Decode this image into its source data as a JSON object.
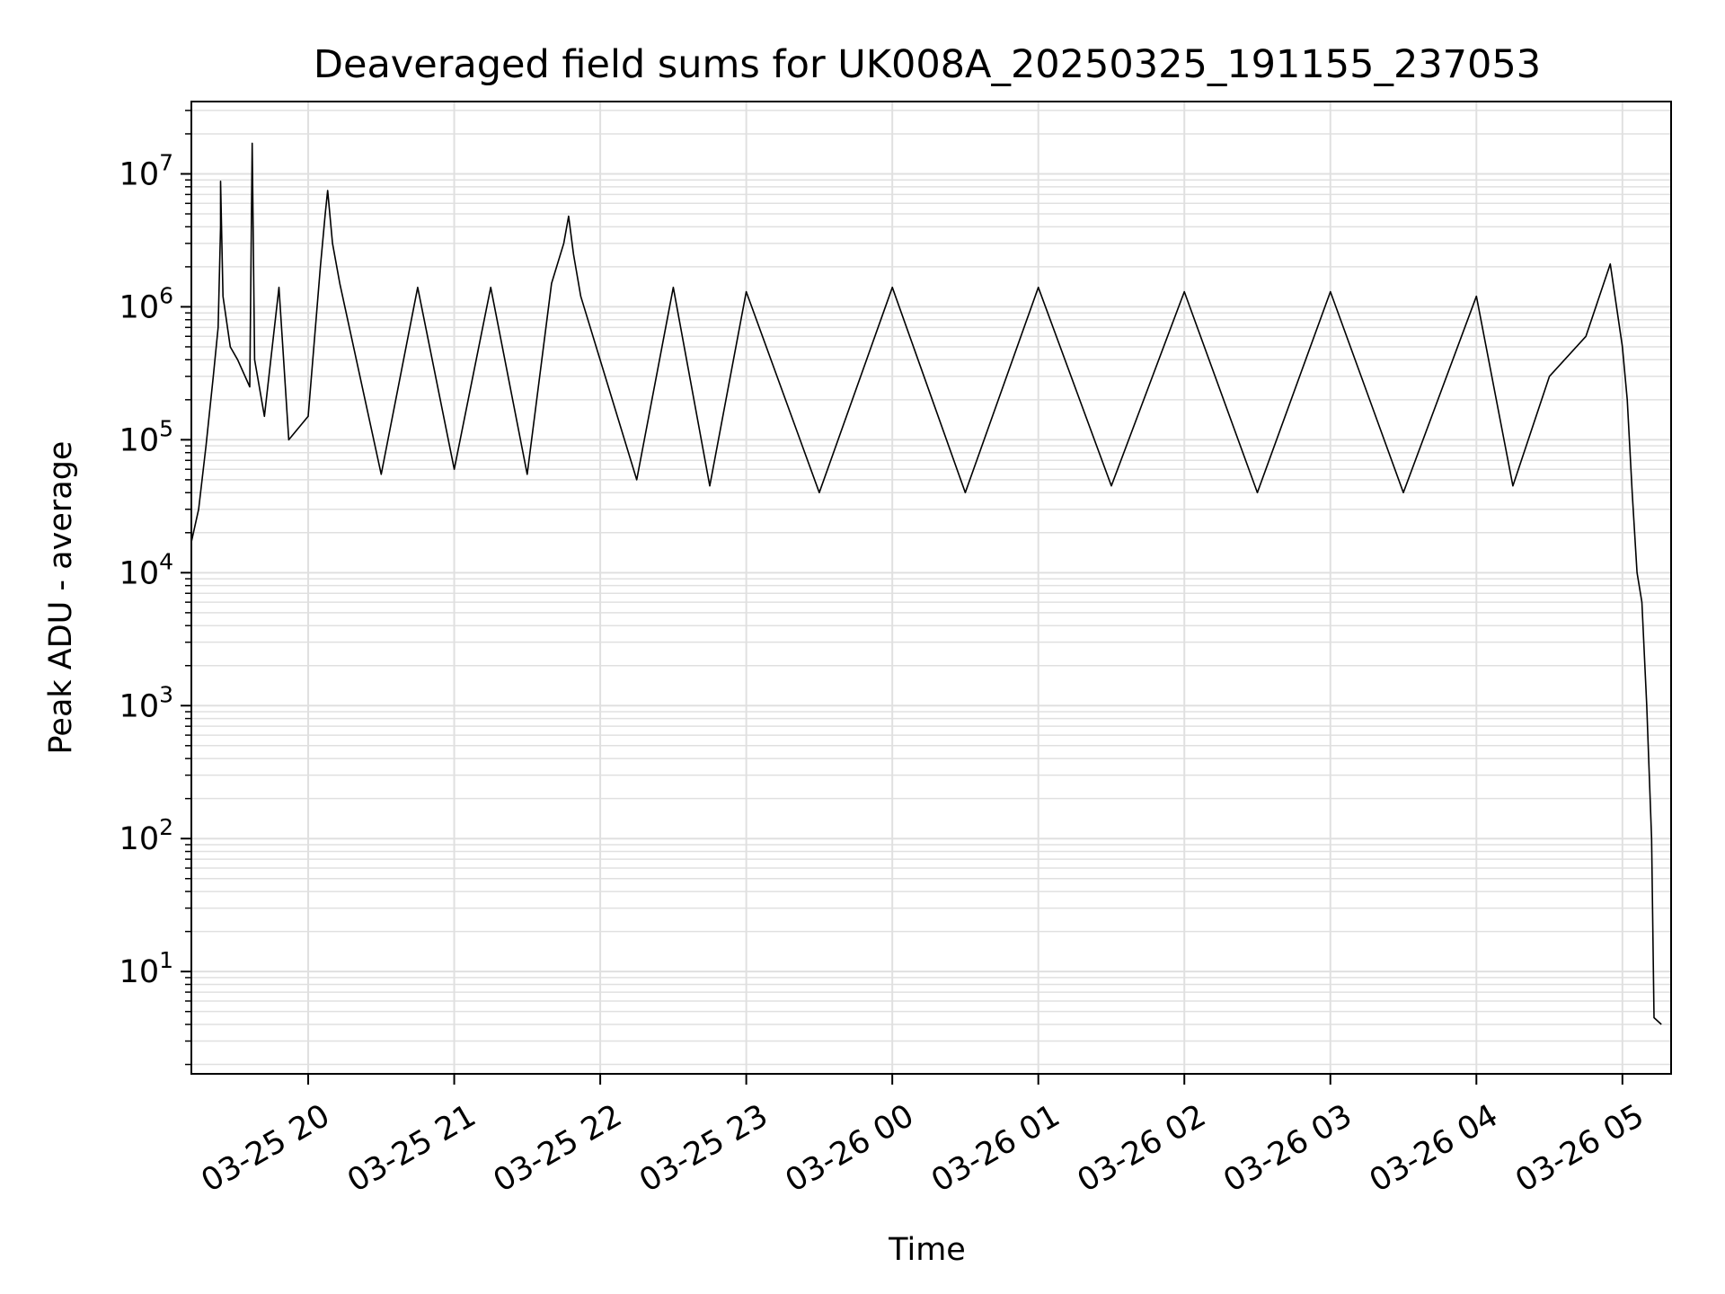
{
  "chart_data": {
    "type": "line",
    "title": "Deaveraged field sums for UK008A_20250325_191155_237053",
    "xlabel": "Time",
    "ylabel": "Peak ADU - average",
    "yscale": "log",
    "ylim": [
      1.7,
      35000000
    ],
    "xlim": [
      "2025-03-25 19:12",
      "2025-03-26 05:20"
    ],
    "grid": true,
    "line_color": "#000000",
    "grid_color": "#e0e0e0",
    "x_ticks": [
      {
        "value": "2025-03-25 20:00",
        "label": "03-25 20"
      },
      {
        "value": "2025-03-25 21:00",
        "label": "03-25 21"
      },
      {
        "value": "2025-03-25 22:00",
        "label": "03-25 22"
      },
      {
        "value": "2025-03-25 23:00",
        "label": "03-25 23"
      },
      {
        "value": "2025-03-26 00:00",
        "label": "03-26 00"
      },
      {
        "value": "2025-03-26 01:00",
        "label": "03-26 01"
      },
      {
        "value": "2025-03-26 02:00",
        "label": "03-26 02"
      },
      {
        "value": "2025-03-26 03:00",
        "label": "03-26 03"
      },
      {
        "value": "2025-03-26 04:00",
        "label": "03-26 04"
      },
      {
        "value": "2025-03-26 05:00",
        "label": "03-26 05"
      }
    ],
    "y_ticks": [
      {
        "value": 10,
        "base": "10",
        "exp": "1"
      },
      {
        "value": 100,
        "base": "10",
        "exp": "2"
      },
      {
        "value": 1000,
        "base": "10",
        "exp": "3"
      },
      {
        "value": 10000,
        "base": "10",
        "exp": "4"
      },
      {
        "value": 100000,
        "base": "10",
        "exp": "5"
      },
      {
        "value": 1000000,
        "base": "10",
        "exp": "6"
      },
      {
        "value": 10000000,
        "base": "10",
        "exp": "7"
      }
    ],
    "series": [
      {
        "points": [
          [
            "2025-03-25 19:12",
            17000
          ],
          [
            "2025-03-25 19:15",
            30000
          ],
          [
            "2025-03-25 19:18",
            90000
          ],
          [
            "2025-03-25 19:21",
            300000
          ],
          [
            "2025-03-25 19:23",
            700000
          ],
          [
            "2025-03-25 19:24",
            4000000
          ],
          [
            "2025-03-25 19:24",
            8800000
          ],
          [
            "2025-03-25 19:25",
            1200000
          ],
          [
            "2025-03-25 19:28",
            500000
          ],
          [
            "2025-03-25 19:31",
            400000
          ],
          [
            "2025-03-25 19:36",
            250000
          ],
          [
            "2025-03-25 19:37",
            17000000
          ],
          [
            "2025-03-25 19:38",
            400000
          ],
          [
            "2025-03-25 19:42",
            150000
          ],
          [
            "2025-03-25 19:48",
            1400000
          ],
          [
            "2025-03-25 19:52",
            100000
          ],
          [
            "2025-03-25 20:00",
            150000
          ],
          [
            "2025-03-25 20:05",
            2000000
          ],
          [
            "2025-03-25 20:07",
            5000000
          ],
          [
            "2025-03-25 20:08",
            7500000
          ],
          [
            "2025-03-25 20:10",
            3000000
          ],
          [
            "2025-03-25 20:13",
            1500000
          ],
          [
            "2025-03-25 20:30",
            55000
          ],
          [
            "2025-03-25 20:45",
            1400000
          ],
          [
            "2025-03-25 21:00",
            60000
          ],
          [
            "2025-03-25 21:15",
            1400000
          ],
          [
            "2025-03-25 21:30",
            55000
          ],
          [
            "2025-03-25 21:40",
            1500000
          ],
          [
            "2025-03-25 21:45",
            3000000
          ],
          [
            "2025-03-25 21:47",
            4800000
          ],
          [
            "2025-03-25 21:49",
            2500000
          ],
          [
            "2025-03-25 21:52",
            1200000
          ],
          [
            "2025-03-25 22:15",
            50000
          ],
          [
            "2025-03-25 22:30",
            1400000
          ],
          [
            "2025-03-25 22:45",
            45000
          ],
          [
            "2025-03-25 23:00",
            1300000
          ],
          [
            "2025-03-25 23:30",
            40000
          ],
          [
            "2025-03-26 00:00",
            1400000
          ],
          [
            "2025-03-26 00:30",
            40000
          ],
          [
            "2025-03-26 01:00",
            1400000
          ],
          [
            "2025-03-26 01:30",
            45000
          ],
          [
            "2025-03-26 02:00",
            1300000
          ],
          [
            "2025-03-26 02:30",
            40000
          ],
          [
            "2025-03-26 03:00",
            1300000
          ],
          [
            "2025-03-26 03:30",
            40000
          ],
          [
            "2025-03-26 04:00",
            1200000
          ],
          [
            "2025-03-26 04:15",
            45000
          ],
          [
            "2025-03-26 04:30",
            300000
          ],
          [
            "2025-03-26 04:45",
            600000
          ],
          [
            "2025-03-26 04:55",
            2100000
          ],
          [
            "2025-03-26 05:00",
            500000
          ],
          [
            "2025-03-26 05:02",
            200000
          ],
          [
            "2025-03-26 05:04",
            40000
          ],
          [
            "2025-03-26 05:06",
            10000
          ],
          [
            "2025-03-26 05:08",
            6000
          ],
          [
            "2025-03-26 05:10",
            1000
          ],
          [
            "2025-03-26 05:12",
            100
          ],
          [
            "2025-03-26 05:13",
            4.5
          ],
          [
            "2025-03-26 05:16",
            4
          ]
        ]
      }
    ]
  }
}
